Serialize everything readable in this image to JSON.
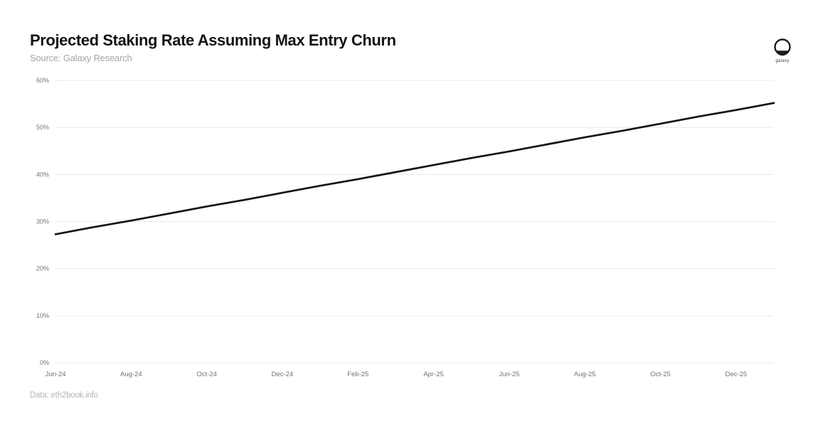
{
  "header": {
    "title": "Projected Staking Rate Assuming Max Entry Churn",
    "source": "Source: Galaxy Research",
    "logo_label": "galaxy"
  },
  "footer": {
    "data_note": "Data: eth2book.info"
  },
  "colors": {
    "line": "#141414",
    "grid": "#e8e8e8",
    "axis_text": "#737373",
    "title_text": "#141414",
    "subtitle_text": "#a6a6a6",
    "footer_text": "#b5b5b5",
    "background": "#ffffff"
  },
  "chart_data": {
    "type": "line",
    "title": "Projected Staking Rate Assuming Max Entry Churn",
    "xlabel": "",
    "ylabel": "",
    "x": [
      "Jun-24",
      "Jul-24",
      "Aug-24",
      "Sep-24",
      "Oct-24",
      "Nov-24",
      "Dec-24",
      "Jan-25",
      "Feb-25",
      "Mar-25",
      "Apr-25",
      "May-25",
      "Jun-25",
      "Jul-25",
      "Aug-25",
      "Sep-25",
      "Oct-25",
      "Nov-25",
      "Dec-25",
      "Jan-26"
    ],
    "x_tick_labels": [
      "Jun-24",
      "Aug-24",
      "Oct-24",
      "Dec-24",
      "Feb-25",
      "Apr-25",
      "Jun-25",
      "Aug-25",
      "Oct-25",
      "Dec-25"
    ],
    "x_tick_indices": [
      0,
      2,
      4,
      6,
      8,
      10,
      12,
      14,
      16,
      18
    ],
    "series": [
      {
        "name": "Projected Staking Rate",
        "values": [
          27.3,
          28.8,
          30.2,
          31.7,
          33.2,
          34.6,
          36.1,
          37.6,
          39.0,
          40.5,
          42.0,
          43.5,
          44.9,
          46.4,
          47.9,
          49.3,
          50.8,
          52.3,
          53.7,
          55.2
        ]
      }
    ],
    "ylim": [
      0,
      60
    ],
    "y_ticks": [
      0,
      10,
      20,
      30,
      40,
      50,
      60
    ],
    "y_tick_format": "percent",
    "grid": "horizontal",
    "legend": "none"
  }
}
